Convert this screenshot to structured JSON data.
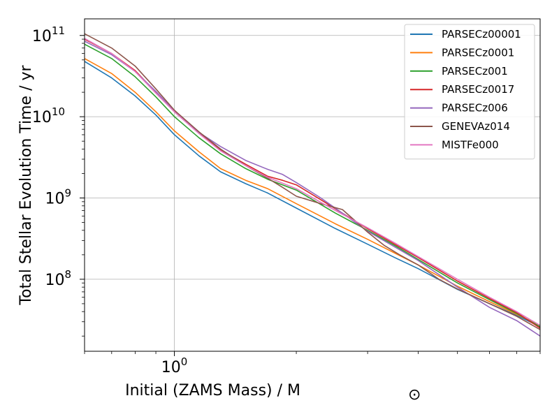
{
  "chart_data": {
    "type": "line",
    "xlabel": "Initial (ZAMS Mass) / M",
    "xlabel_sub": "⊙",
    "ylabel": "Total Stellar Evolution Time / yr",
    "x_scale": "log",
    "y_scale": "log",
    "xlim": [
      0.6,
      8.0
    ],
    "ylim": [
      13000000,
      160000000000
    ],
    "grid": true,
    "legend_position": "top-right",
    "x_major_ticks": [
      {
        "value": 1.0,
        "label": "10",
        "exp": "0"
      }
    ],
    "y_major_ticks": [
      {
        "value": 100000000,
        "label": "10",
        "exp": "8"
      },
      {
        "value": 1000000000,
        "label": "10",
        "exp": "9"
      },
      {
        "value": 10000000000,
        "label": "10",
        "exp": "10"
      },
      {
        "value": 100000000000,
        "label": "10",
        "exp": "11"
      }
    ],
    "x_minor_ticks": [
      0.6,
      0.7,
      0.8,
      0.9,
      2,
      3,
      4,
      5,
      6,
      7,
      8
    ],
    "y_minor_ticks": [
      20000000,
      30000000,
      40000000,
      50000000,
      60000000,
      70000000,
      80000000,
      90000000,
      200000000,
      300000000,
      400000000,
      500000000,
      600000000,
      700000000,
      800000000,
      900000000,
      2000000000,
      3000000000,
      4000000000,
      5000000000,
      6000000000,
      7000000000,
      8000000000,
      9000000000,
      20000000000,
      30000000000,
      40000000000,
      50000000000,
      60000000000,
      70000000000,
      80000000000,
      90000000000
    ],
    "series": [
      {
        "name": "PARSECz00001",
        "color": "#1f77b4",
        "x": [
          0.6,
          0.7,
          0.8,
          0.9,
          1.0,
          1.15,
          1.3,
          1.5,
          1.7,
          2.0,
          2.5,
          3.0,
          3.5,
          4.0,
          5.0,
          6.0,
          7.0,
          8.0
        ],
        "y": [
          48000000000,
          30000000000,
          18000000000,
          10500000000,
          6000000000,
          3300000000,
          2100000000,
          1500000000,
          1150000000,
          750000000,
          420000000,
          270000000,
          185000000,
          135000000,
          75000000,
          50000000,
          36000000,
          26000000
        ]
      },
      {
        "name": "PARSECz0001",
        "color": "#ff7f0e",
        "x": [
          0.6,
          0.7,
          0.8,
          0.9,
          1.0,
          1.15,
          1.3,
          1.5,
          1.7,
          2.0,
          2.5,
          3.0,
          3.5,
          4.0,
          5.0,
          6.0,
          7.0,
          8.0
        ],
        "y": [
          52000000000,
          34000000000,
          20000000000,
          11500000000,
          6700000000,
          3700000000,
          2300000000,
          1650000000,
          1300000000,
          850000000,
          480000000,
          310000000,
          210000000,
          150000000,
          82000000,
          53000000,
          37000000,
          27000000
        ]
      },
      {
        "name": "PARSECz001",
        "color": "#2ca02c",
        "x": [
          0.6,
          0.7,
          0.8,
          0.9,
          1.0,
          1.15,
          1.3,
          1.5,
          1.7,
          2.0,
          2.5,
          3.0,
          3.5,
          4.0,
          5.0,
          6.0,
          7.0,
          8.0
        ],
        "y": [
          78000000000,
          52000000000,
          31000000000,
          17500000000,
          10000000000,
          5500000000,
          3500000000,
          2300000000,
          1700000000,
          1250000000,
          650000000,
          400000000,
          260000000,
          175000000,
          90000000,
          56000000,
          38000000,
          26000000
        ]
      },
      {
        "name": "PARSECz0017",
        "color": "#d62728",
        "x": [
          0.6,
          0.7,
          0.8,
          0.9,
          1.0,
          1.15,
          1.3,
          1.5,
          1.7,
          1.85,
          2.0,
          2.3,
          2.6,
          3.0,
          3.5,
          4.0,
          5.0,
          6.0,
          7.0,
          8.0
        ],
        "y": [
          90000000000,
          60000000000,
          37000000000,
          20000000000,
          11500000000,
          6300000000,
          3900000000,
          2600000000,
          1850000000,
          1650000000,
          1450000000,
          950000000,
          650000000,
          420000000,
          270000000,
          185000000,
          95000000,
          58000000,
          39000000,
          25000000
        ]
      },
      {
        "name": "PARSECz006",
        "color": "#9467bd",
        "x": [
          0.6,
          0.7,
          0.8,
          0.9,
          1.0,
          1.15,
          1.3,
          1.5,
          1.7,
          1.85,
          2.0,
          2.3,
          2.6,
          3.0,
          3.5,
          4.0,
          5.0,
          6.0,
          7.0,
          8.0
        ],
        "y": [
          85000000000,
          58000000000,
          36000000000,
          20500000000,
          11800000000,
          6400000000,
          4300000000,
          2900000000,
          2250000000,
          1950000000,
          1550000000,
          1000000000,
          650000000,
          390000000,
          250000000,
          170000000,
          80000000,
          45000000,
          31000000,
          20000000
        ]
      },
      {
        "name": "GENEVAz014",
        "color": "#8c564b",
        "x": [
          0.6,
          0.7,
          0.8,
          0.9,
          1.0,
          1.15,
          1.3,
          1.5,
          1.7,
          1.85,
          2.0,
          2.3,
          2.6,
          2.8,
          3.0,
          3.3,
          3.6,
          4.0,
          4.5,
          5.0,
          6.0,
          7.0,
          8.0
        ],
        "y": [
          105000000000,
          70000000000,
          42000000000,
          22000000000,
          12000000000,
          6500000000,
          4000000000,
          2500000000,
          1750000000,
          1350000000,
          1050000000,
          850000000,
          720000000,
          520000000,
          380000000,
          260000000,
          200000000,
          150000000,
          100000000,
          76000000,
          50000000,
          35000000,
          24000000
        ]
      },
      {
        "name": "MISTFe000",
        "color": "#e377c2",
        "x": [
          0.6,
          0.7,
          0.8,
          0.9,
          1.0,
          1.15,
          1.3,
          1.5,
          1.7,
          2.0,
          2.5,
          3.0,
          3.5,
          4.0,
          5.0,
          6.0,
          7.0,
          8.0
        ],
        "y": [
          92000000000,
          60000000000,
          36000000000,
          19500000000,
          11500000000,
          6200000000,
          3800000000,
          2500000000,
          1800000000,
          1300000000,
          700000000,
          430000000,
          280000000,
          190000000,
          100000000,
          60000000,
          40000000,
          27000000
        ]
      }
    ]
  }
}
